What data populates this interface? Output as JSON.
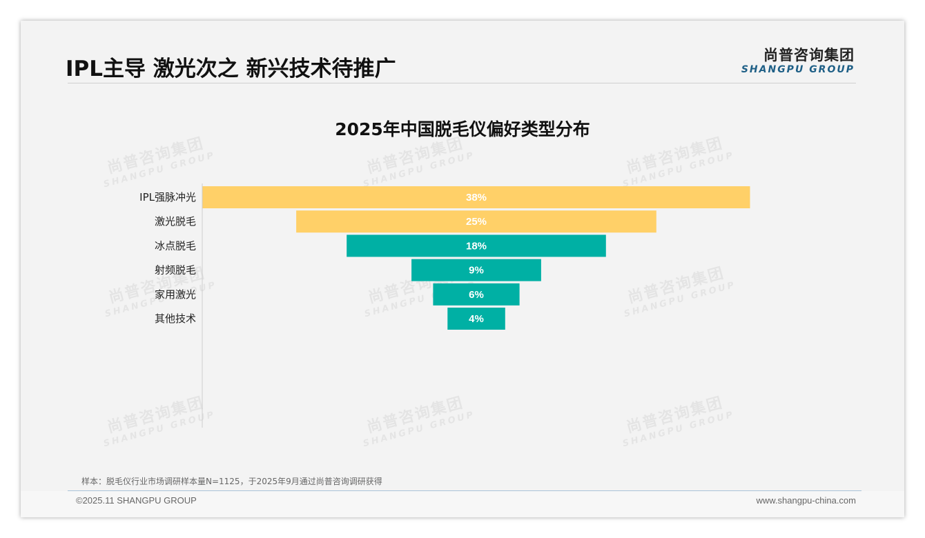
{
  "page": {
    "title": "IPL主导 激光次之 新兴技术待推广",
    "brand_cn": "尚普咨询集团",
    "brand_en": "SHANGPU GROUP",
    "watermark_cn": "尚普咨询集团",
    "watermark_en": "SHANGPU GROUP",
    "note": "样本：脱毛仪行业市场调研样本量N=1125，于2025年9月通过尚普咨询调研获得",
    "copyright": "©2025.11 SHANGPU GROUP",
    "website": "www.shangpu-china.com"
  },
  "chart_data": {
    "type": "bar",
    "orientation": "horizontal-funnel",
    "title": "2025年中国脱毛仪偏好类型分布",
    "categories": [
      "IPL强脉冲光",
      "激光脱毛",
      "冰点脱毛",
      "射频脱毛",
      "家用激光",
      "其他技术"
    ],
    "values": [
      38,
      25,
      18,
      9,
      6,
      4
    ],
    "labels": [
      "38%",
      "25%",
      "18%",
      "9%",
      "6%",
      "4%"
    ],
    "unit": "%",
    "colors": [
      "#ffd068",
      "#ffd068",
      "#00b0a4",
      "#00b0a4",
      "#00b0a4",
      "#00b0a4"
    ],
    "label_color": "#ffffff",
    "grid": false,
    "legend": "none"
  }
}
